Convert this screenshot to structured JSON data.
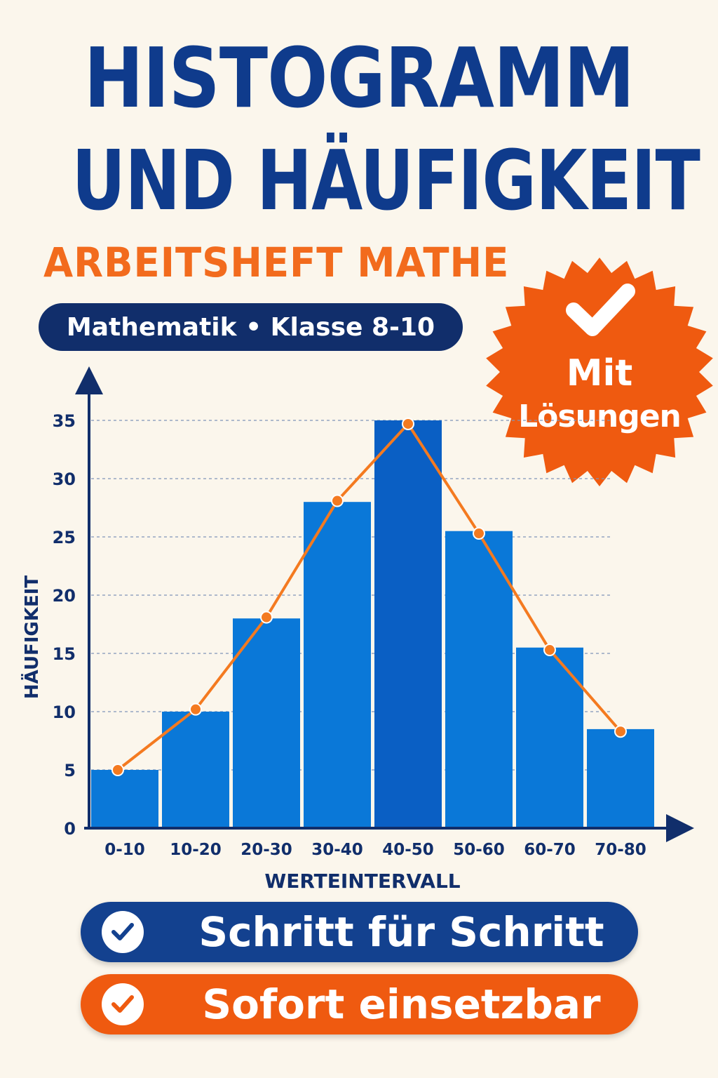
{
  "cover": {
    "title_line1": "HISTOGRAMM",
    "title_line2": "UND HÄUFIGKEIT",
    "subtitle": "ARBEITSHEFT MATHE",
    "pill_label": "Mathematik • Klasse 8-10",
    "badge_line1": "Mit",
    "badge_line2": "Lösungen",
    "button1_label": "Schritt für Schritt",
    "button2_label": "Sofort einsetzbar"
  },
  "colors": {
    "navy": "#0f3b8c",
    "orange": "#f26b1d",
    "bar_blue": "#0a78d8",
    "bar_highlight": "#0a5fc4",
    "line_orange": "#f47a20",
    "background": "#fbf6ec"
  },
  "chart_data": {
    "type": "bar",
    "categories": [
      "0-10",
      "10-20",
      "20-30",
      "30-40",
      "40-50",
      "50-60",
      "60-70",
      "70-80"
    ],
    "values": [
      5,
      10,
      18,
      28,
      35,
      25.5,
      15.5,
      8.5
    ],
    "polygon_values": [
      5,
      10.2,
      18.1,
      28.1,
      34.7,
      25.3,
      15.3,
      8.3
    ],
    "xlabel": "WERTEINTERVALL",
    "ylabel": "HÄUFIGKEIT",
    "ylim": [
      0,
      35
    ],
    "yticks": [
      0,
      5,
      10,
      15,
      20,
      25,
      30,
      35
    ],
    "grid": true
  }
}
